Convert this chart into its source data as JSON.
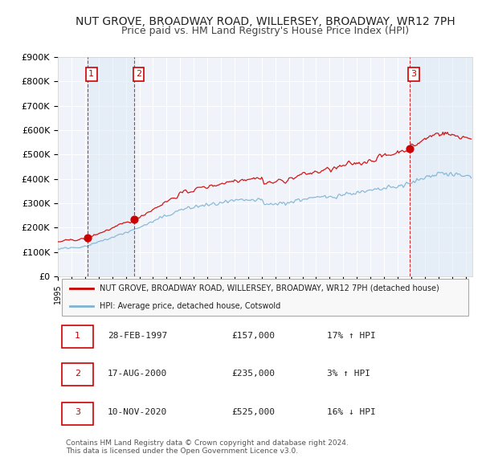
{
  "title": "NUT GROVE, BROADWAY ROAD, WILLERSEY, BROADWAY, WR12 7PH",
  "subtitle": "Price paid vs. HM Land Registry's House Price Index (HPI)",
  "ylabel": "",
  "background_color": "#ffffff",
  "chart_bg": "#f0f4fa",
  "grid_color": "#ffffff",
  "red_line_color": "#cc0000",
  "blue_line_color": "#7fb3d3",
  "sale_marker_color": "#cc0000",
  "sale_dashed_color": "#cc0000",
  "shade_color": "#dce8f5",
  "ylim": [
    0,
    900000
  ],
  "yticks": [
    0,
    100000,
    200000,
    300000,
    400000,
    500000,
    600000,
    700000,
    800000,
    900000
  ],
  "ytick_labels": [
    "£0",
    "£100K",
    "£200K",
    "£300K",
    "£400K",
    "£500K",
    "£600K",
    "£700K",
    "£800K",
    "£900K"
  ],
  "sales": [
    {
      "num": 1,
      "date_str": "28-FEB-1997",
      "date_dec": 1997.16,
      "price": 157000,
      "hpi_pct": "17% ↑ HPI"
    },
    {
      "num": 2,
      "date_str": "17-AUG-2000",
      "date_dec": 2000.63,
      "price": 235000,
      "hpi_pct": "3% ↑ HPI"
    },
    {
      "num": 3,
      "date_str": "10-NOV-2020",
      "date_dec": 2020.86,
      "price": 525000,
      "hpi_pct": "16% ↓ HPI"
    }
  ],
  "legend_label_red": "NUT GROVE, BROADWAY ROAD, WILLERSEY, BROADWAY, WR12 7PH (detached house)",
  "legend_label_blue": "HPI: Average price, detached house, Cotswold",
  "footer": "Contains HM Land Registry data © Crown copyright and database right 2024.\nThis data is licensed under the Open Government Licence v3.0.",
  "title_fontsize": 10,
  "subtitle_fontsize": 9
}
